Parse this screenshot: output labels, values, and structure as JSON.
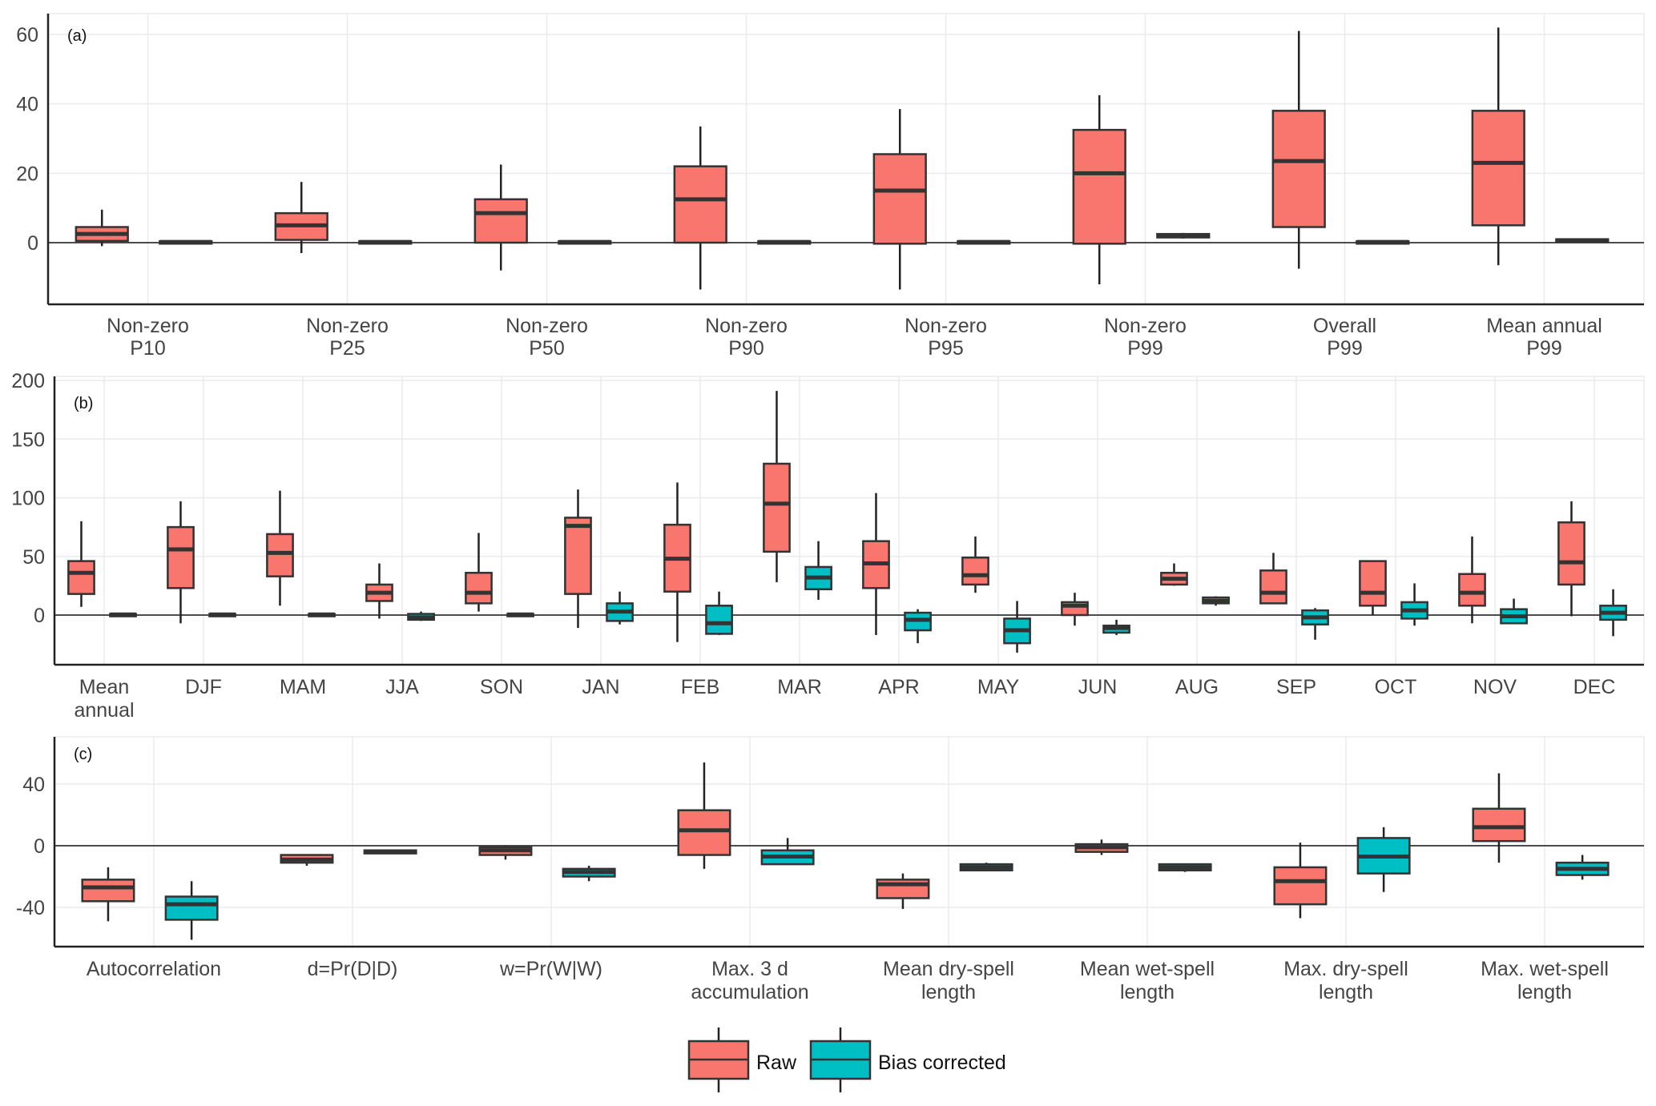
{
  "chart_data": [
    {
      "type": "boxplot",
      "panel_label": "(a)",
      "ylim": [
        -18,
        66
      ],
      "yticks": [
        0,
        20,
        40,
        60
      ],
      "grid": true,
      "hline_zero": true,
      "categories": [
        [
          "Non-zero",
          "P10"
        ],
        [
          "Non-zero",
          "P25"
        ],
        [
          "Non-zero",
          "P50"
        ],
        [
          "Non-zero",
          "P90"
        ],
        [
          "Non-zero",
          "P95"
        ],
        [
          "Non-zero",
          "P99"
        ],
        [
          "Overall",
          "P99"
        ],
        [
          "Mean annual",
          "P99"
        ]
      ],
      "series": [
        {
          "name": "Raw",
          "boxes": [
            {
              "lo": -1,
              "q1": 0.5,
              "med": 2.5,
              "q3": 4.5,
              "hi": 9.5
            },
            {
              "lo": -3,
              "q1": 0.8,
              "med": 5,
              "q3": 8.5,
              "hi": 17.5
            },
            {
              "lo": -8,
              "q1": 0,
              "med": 8.5,
              "q3": 12.5,
              "hi": 22.5
            },
            {
              "lo": -13.5,
              "q1": 0,
              "med": 12.5,
              "q3": 22,
              "hi": 33.5
            },
            {
              "lo": -13.5,
              "q1": -0.3,
              "med": 15,
              "q3": 25.5,
              "hi": 38.5
            },
            {
              "lo": -12,
              "q1": -0.3,
              "med": 20,
              "q3": 32.5,
              "hi": 42.5
            },
            {
              "lo": -7.5,
              "q1": 4.5,
              "med": 23.5,
              "q3": 38,
              "hi": 61
            },
            {
              "lo": -6.5,
              "q1": 5,
              "med": 23,
              "q3": 38,
              "hi": 62
            }
          ]
        },
        {
          "name": "Bias corrected",
          "boxes": [
            {
              "lo": 0,
              "q1": 0,
              "med": 0.2,
              "q3": 0.4,
              "hi": 0.4
            },
            {
              "lo": 0,
              "q1": 0,
              "med": 0.2,
              "q3": 0.4,
              "hi": 0.4
            },
            {
              "lo": 0,
              "q1": 0,
              "med": 0.2,
              "q3": 0.4,
              "hi": 0.4
            },
            {
              "lo": 0,
              "q1": 0,
              "med": 0.2,
              "q3": 0.4,
              "hi": 0.4
            },
            {
              "lo": 0,
              "q1": 0,
              "med": 0.2,
              "q3": 0.4,
              "hi": 0.4
            },
            {
              "lo": 1.2,
              "q1": 1.5,
              "med": 2,
              "q3": 2.5,
              "hi": 2.8
            },
            {
              "lo": 0,
              "q1": 0,
              "med": 0.2,
              "q3": 0.4,
              "hi": 0.4
            },
            {
              "lo": 0,
              "q1": 0.2,
              "med": 0.5,
              "q3": 1,
              "hi": 1
            }
          ]
        }
      ]
    },
    {
      "type": "boxplot",
      "panel_label": "(b)",
      "ylim": [
        -45,
        200
      ],
      "yticks": [
        0,
        50,
        100,
        150,
        200
      ],
      "grid": true,
      "hline_zero": true,
      "categories": [
        [
          "Mean",
          "annual"
        ],
        [
          "DJF"
        ],
        [
          "MAM"
        ],
        [
          "JJA"
        ],
        [
          "SON"
        ],
        [
          "JAN"
        ],
        [
          "FEB"
        ],
        [
          "MAR"
        ],
        [
          "APR"
        ],
        [
          "MAY"
        ],
        [
          "JUN"
        ],
        [
          "AUG"
        ],
        [
          "SEP"
        ],
        [
          "OCT"
        ],
        [
          "NOV"
        ],
        [
          "DEC"
        ]
      ],
      "series": [
        {
          "name": "Raw",
          "boxes": [
            {
              "lo": 7,
              "q1": 18,
              "med": 36,
              "q3": 46,
              "hi": 80
            },
            {
              "lo": -7,
              "q1": 23,
              "med": 56,
              "q3": 75,
              "hi": 97
            },
            {
              "lo": 8,
              "q1": 33,
              "med": 53,
              "q3": 69,
              "hi": 106
            },
            {
              "lo": -3,
              "q1": 12,
              "med": 19,
              "q3": 26,
              "hi": 44
            },
            {
              "lo": 3,
              "q1": 10,
              "med": 19,
              "q3": 36,
              "hi": 70
            },
            {
              "lo": -11,
              "q1": 18,
              "med": 76,
              "q3": 83,
              "hi": 107
            },
            {
              "lo": -23,
              "q1": 20,
              "med": 48,
              "q3": 77,
              "hi": 113
            },
            {
              "lo": 28,
              "q1": 54,
              "med": 95,
              "q3": 129,
              "hi": 191
            },
            {
              "lo": -17,
              "q1": 23,
              "med": 44,
              "q3": 63,
              "hi": 104
            },
            {
              "lo": 19,
              "q1": 26,
              "med": 34,
              "q3": 49,
              "hi": 67
            },
            {
              "lo": -9,
              "q1": 0,
              "med": 8,
              "q3": 11,
              "hi": 19
            },
            {
              "lo": 25,
              "q1": 26,
              "med": 31,
              "q3": 36,
              "hi": 44
            },
            {
              "lo": 10,
              "q1": 10,
              "med": 19,
              "q3": 38,
              "hi": 53
            },
            {
              "lo": 0,
              "q1": 8,
              "med": 19,
              "q3": 46,
              "hi": 46
            },
            {
              "lo": -7,
              "q1": 8,
              "med": 19,
              "q3": 35,
              "hi": 67
            },
            {
              "lo": -1,
              "q1": 26,
              "med": 45,
              "q3": 79,
              "hi": 97
            }
          ]
        },
        {
          "name": "Bias corrected",
          "boxes": [
            {
              "lo": 0,
              "q1": 0,
              "med": 0.5,
              "q3": 1,
              "hi": 1
            },
            {
              "lo": 0,
              "q1": 0,
              "med": 0.5,
              "q3": 1,
              "hi": 1
            },
            {
              "lo": 0,
              "q1": 0,
              "med": 0.5,
              "q3": 1,
              "hi": 1
            },
            {
              "lo": -5,
              "q1": -4,
              "med": -2,
              "q3": 1,
              "hi": 3
            },
            {
              "lo": 0,
              "q1": 0,
              "med": 0.5,
              "q3": 1,
              "hi": 1
            },
            {
              "lo": -8,
              "q1": -5,
              "med": 3,
              "q3": 10,
              "hi": 20
            },
            {
              "lo": -17,
              "q1": -16,
              "med": -7,
              "q3": 8,
              "hi": 20
            },
            {
              "lo": 13,
              "q1": 22,
              "med": 32,
              "q3": 41,
              "hi": 63
            },
            {
              "lo": -24,
              "q1": -13,
              "med": -4,
              "q3": 2,
              "hi": 5
            },
            {
              "lo": -32,
              "q1": -24,
              "med": -13,
              "q3": -3,
              "hi": 12
            },
            {
              "lo": -17,
              "q1": -15,
              "med": -11,
              "q3": -9,
              "hi": -4
            },
            {
              "lo": 8,
              "q1": 10,
              "med": 12,
              "q3": 15,
              "hi": 16
            },
            {
              "lo": -21,
              "q1": -8,
              "med": -2,
              "q3": 4,
              "hi": 6
            },
            {
              "lo": -9,
              "q1": -3,
              "med": 4,
              "q3": 11,
              "hi": 27
            },
            {
              "lo": -7,
              "q1": -7,
              "med": -1,
              "q3": 5,
              "hi": 14
            },
            {
              "lo": -18,
              "q1": -4,
              "med": 2,
              "q3": 8,
              "hi": 22
            }
          ]
        }
      ]
    },
    {
      "type": "boxplot",
      "panel_label": "(c)",
      "ylim": [
        -66,
        70
      ],
      "yticks": [
        -40,
        0,
        40
      ],
      "grid": true,
      "hline_zero": true,
      "categories": [
        [
          "Autocorrelation"
        ],
        [
          "d=Pr(D|D)"
        ],
        [
          "w=Pr(W|W)"
        ],
        [
          "Max. 3 d",
          "accumulation"
        ],
        [
          "Mean dry-spell",
          "length"
        ],
        [
          "Mean wet-spell",
          "length"
        ],
        [
          "Max. dry-spell",
          "length"
        ],
        [
          "Max. wet-spell",
          "length"
        ]
      ],
      "series": [
        {
          "name": "Raw",
          "boxes": [
            {
              "lo": -49,
              "q1": -36,
              "med": -27,
              "q3": -22,
              "hi": -14
            },
            {
              "lo": -13,
              "q1": -11,
              "med": -9,
              "q3": -6,
              "hi": -6
            },
            {
              "lo": -9,
              "q1": -6,
              "med": -3,
              "q3": -1,
              "hi": 0
            },
            {
              "lo": -15,
              "q1": -6,
              "med": 10,
              "q3": 23,
              "hi": 54
            },
            {
              "lo": -41,
              "q1": -34,
              "med": -25,
              "q3": -22,
              "hi": -18
            },
            {
              "lo": -6,
              "q1": -4,
              "med": -1,
              "q3": 1,
              "hi": 4
            },
            {
              "lo": -47,
              "q1": -38,
              "med": -23,
              "q3": -14,
              "hi": 2
            },
            {
              "lo": -11,
              "q1": 3,
              "med": 12,
              "q3": 24,
              "hi": 47
            }
          ]
        },
        {
          "name": "Bias corrected",
          "boxes": [
            {
              "lo": -61,
              "q1": -48,
              "med": -38,
              "q3": -33,
              "hi": -23
            },
            {
              "lo": -5,
              "q1": -5,
              "med": -4,
              "q3": -3,
              "hi": -3
            },
            {
              "lo": -23,
              "q1": -20,
              "med": -17,
              "q3": -15,
              "hi": -13
            },
            {
              "lo": -12,
              "q1": -12,
              "med": -7,
              "q3": -3,
              "hi": 5
            },
            {
              "lo": -16,
              "q1": -16,
              "med": -14,
              "q3": -12,
              "hi": -11
            },
            {
              "lo": -17,
              "q1": -16,
              "med": -14,
              "q3": -12,
              "hi": -12
            },
            {
              "lo": -30,
              "q1": -18,
              "med": -7,
              "q3": 5,
              "hi": 12
            },
            {
              "lo": -22,
              "q1": -19,
              "med": -15,
              "q3": -11,
              "hi": -6
            }
          ]
        }
      ]
    }
  ],
  "legend": {
    "position": "bottom-center",
    "items": [
      {
        "name": "Raw",
        "color": "#F8766D"
      },
      {
        "name": "Bias corrected",
        "color": "#00BFC4"
      }
    ]
  },
  "colors": {
    "raw": "#F8766D",
    "bias_corrected": "#00BFC4",
    "outline": "#333333"
  }
}
